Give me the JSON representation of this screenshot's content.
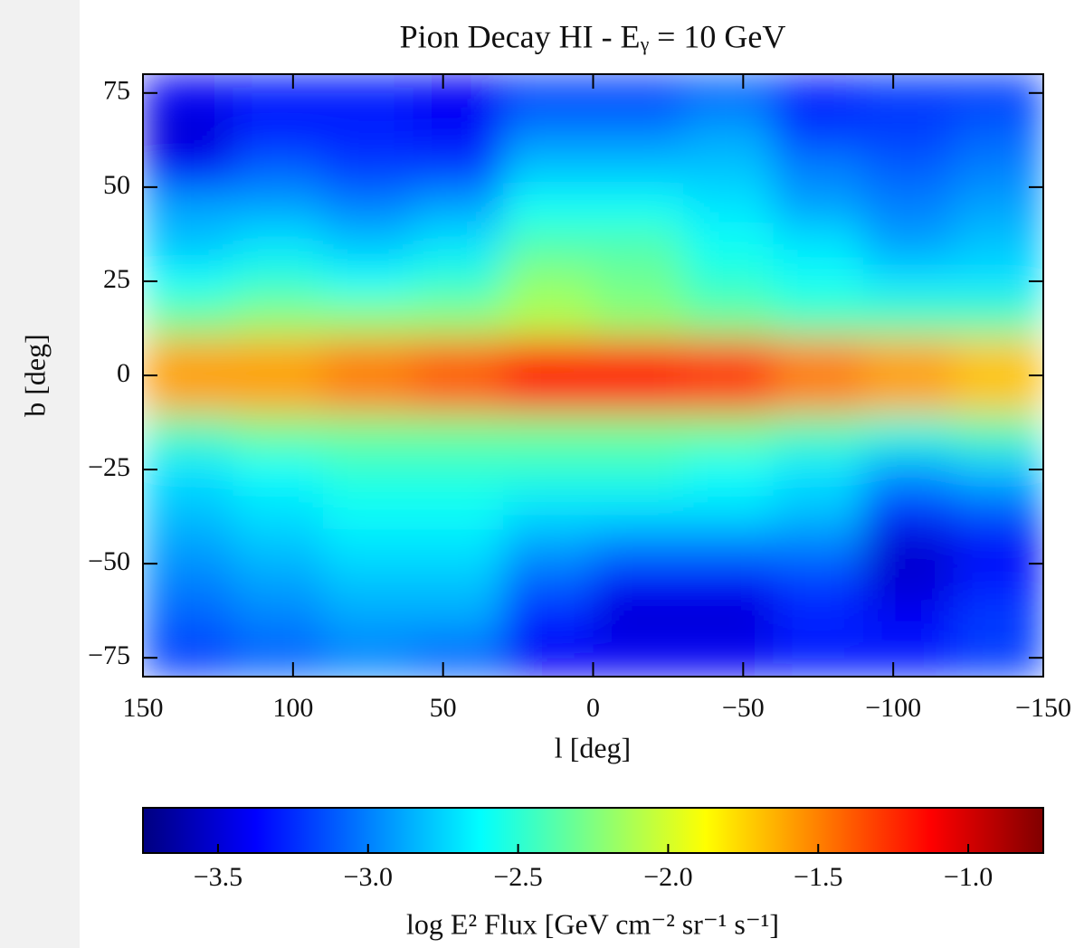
{
  "chart_data": {
    "type": "heatmap",
    "title": "Pion Decay HI - Eᵧ = 10 GeV",
    "x_label": "l [deg]",
    "y_label": "b [deg]",
    "colorbar_label": "log E² Flux [GeV cm⁻² sr⁻¹ s⁻¹]",
    "colormap": "jet",
    "xlim": [
      150,
      -150
    ],
    "ylim": [
      -80,
      80
    ],
    "xticks": [
      150,
      100,
      50,
      0,
      {
        "value": -50,
        "label": "−50"
      },
      {
        "value": -100,
        "label": "−100"
      },
      {
        "value": -150,
        "label": "−150"
      }
    ],
    "yticks": [
      75,
      50,
      25,
      0,
      {
        "value": -25,
        "label": "−25"
      },
      {
        "value": -50,
        "label": "−50"
      },
      {
        "value": -75,
        "label": "−75"
      }
    ],
    "clim": [
      -3.75,
      -0.75
    ],
    "cticks": [
      {
        "value": -3.5,
        "label": "−3.5"
      },
      {
        "value": -3.0,
        "label": "−3.0"
      },
      {
        "value": -2.5,
        "label": "−2.5"
      },
      {
        "value": -2.0,
        "label": "−2.0"
      },
      {
        "value": -1.5,
        "label": "−1.5"
      },
      {
        "value": -1.0,
        "label": "−1.0"
      }
    ],
    "xbins": [
      150,
      120,
      90,
      60,
      30,
      0,
      -30,
      -60,
      -90,
      -120,
      -150
    ],
    "ybins": [
      -80,
      -70,
      -60,
      -50,
      -40,
      -30,
      -20,
      -10,
      0,
      10,
      20,
      30,
      40,
      50,
      60,
      70,
      80
    ],
    "values": [
      [
        -3.2,
        -3.1,
        -3.0,
        -3.1,
        -3.4,
        -3.4,
        -3.4,
        -3.3,
        -3.3,
        -3.2
      ],
      [
        -3.1,
        -3.0,
        -2.9,
        -2.9,
        -3.3,
        -3.5,
        -3.5,
        -3.3,
        -3.4,
        -3.2
      ],
      [
        -3.0,
        -2.9,
        -2.8,
        -2.8,
        -3.1,
        -3.4,
        -3.4,
        -3.2,
        -3.5,
        -3.3
      ],
      [
        -2.9,
        -2.8,
        -2.7,
        -2.7,
        -2.9,
        -3.0,
        -3.0,
        -3.0,
        -3.5,
        -3.4
      ],
      [
        -2.8,
        -2.7,
        -2.6,
        -2.6,
        -2.7,
        -2.7,
        -2.7,
        -2.8,
        -3.2,
        -3.1
      ],
      [
        -2.7,
        -2.6,
        -2.5,
        -2.5,
        -2.5,
        -2.5,
        -2.6,
        -2.7,
        -2.9,
        -2.8
      ],
      [
        -2.4,
        -2.3,
        -2.3,
        -2.3,
        -2.3,
        -2.3,
        -2.3,
        -2.4,
        -2.5,
        -2.4
      ],
      [
        -1.6,
        -1.6,
        -1.5,
        -1.4,
        -1.2,
        -1.2,
        -1.3,
        -1.5,
        -1.6,
        -1.7
      ],
      [
        -1.6,
        -1.6,
        -1.5,
        -1.4,
        -1.2,
        -1.2,
        -1.3,
        -1.5,
        -1.6,
        -1.7
      ],
      [
        -2.3,
        -2.2,
        -2.2,
        -2.2,
        -2.1,
        -2.2,
        -2.3,
        -2.4,
        -2.4,
        -2.4
      ],
      [
        -2.6,
        -2.5,
        -2.6,
        -2.5,
        -2.2,
        -2.3,
        -2.5,
        -2.6,
        -2.7,
        -2.7
      ],
      [
        -2.8,
        -2.7,
        -2.8,
        -2.7,
        -2.4,
        -2.4,
        -2.6,
        -2.7,
        -2.9,
        -2.8
      ],
      [
        -2.9,
        -2.9,
        -3.0,
        -2.9,
        -2.6,
        -2.6,
        -2.7,
        -2.9,
        -3.0,
        -2.9
      ],
      [
        -3.4,
        -3.1,
        -3.2,
        -3.2,
        -2.8,
        -2.8,
        -2.8,
        -3.0,
        -3.1,
        -3.0
      ],
      [
        -3.5,
        -3.3,
        -3.3,
        -3.4,
        -3.0,
        -3.0,
        -2.9,
        -3.2,
        -3.2,
        -3.1
      ],
      [
        -3.4,
        -3.3,
        -3.3,
        -3.4,
        -3.2,
        -3.2,
        -3.1,
        -3.3,
        -3.2,
        -3.2
      ]
    ]
  }
}
